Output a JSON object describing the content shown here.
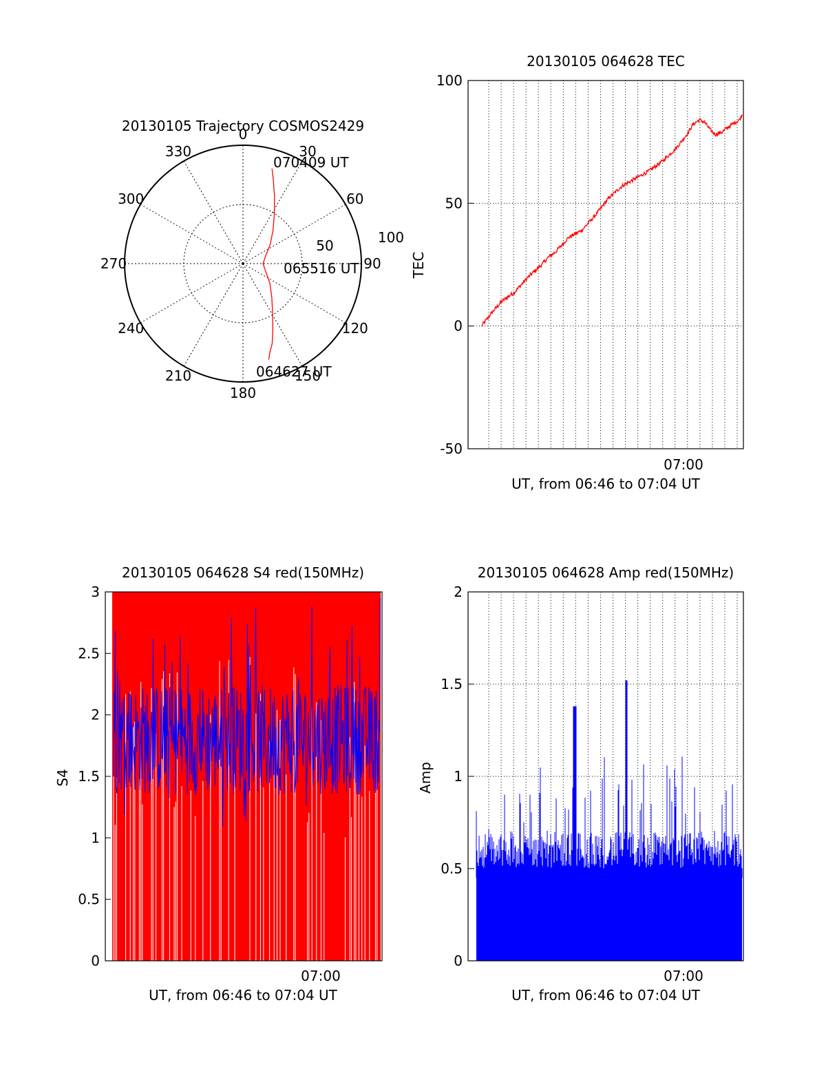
{
  "colors": {
    "red": "#ff0000",
    "blue": "#0000ff",
    "axis": "#000000",
    "grid": "#000000"
  },
  "chart_data": [
    {
      "type": "polar",
      "title": "20130105 Trajectory COSMOS2429",
      "azimuth_labels": [
        "0",
        "30",
        "60",
        "90",
        "120",
        "150",
        "180",
        "210",
        "240",
        "270",
        "300",
        "330"
      ],
      "radial_labels": [
        "50",
        "100"
      ],
      "zenith_scale": "100 at outer ring",
      "grid": true,
      "track": {
        "color": "red",
        "points": [
          [
            165,
            84
          ],
          [
            163,
            78
          ],
          [
            160,
            72
          ],
          [
            156,
            62
          ],
          [
            150,
            50
          ],
          [
            140,
            38
          ],
          [
            126,
            28
          ],
          [
            108,
            20
          ],
          [
            90,
            17
          ],
          [
            72,
            20
          ],
          [
            55,
            28
          ],
          [
            42,
            38
          ],
          [
            32,
            50
          ],
          [
            25,
            63
          ],
          [
            20,
            75
          ],
          [
            17,
            84
          ]
        ]
      },
      "annotations": [
        "070409 UT",
        "065516 UT",
        "064627 UT"
      ]
    },
    {
      "type": "line",
      "title": "20130105 064628 TEC",
      "ylabel": "TEC",
      "xlabel": "UT, from 06:46 to 07:04 UT",
      "x_tick_label": "07:00",
      "yticks": [
        "-50",
        "0",
        "50",
        "100"
      ],
      "ylim": [
        -50,
        100
      ],
      "xlim_minutes": [
        0,
        18
      ],
      "grid": true,
      "series": [
        {
          "color": "red",
          "points": [
            [
              0.5,
              0
            ],
            [
              1.2,
              5
            ],
            [
              2,
              10
            ],
            [
              3,
              14
            ],
            [
              3.5,
              17
            ],
            [
              4,
              20
            ],
            [
              5,
              25
            ],
            [
              5.5,
              28
            ],
            [
              6,
              30
            ],
            [
              6.5,
              33
            ],
            [
              7,
              36
            ],
            [
              8,
              39
            ],
            [
              9,
              45
            ],
            [
              10,
              52
            ],
            [
              11,
              57
            ],
            [
              12,
              60
            ],
            [
              13,
              63
            ],
            [
              14,
              67
            ],
            [
              15,
              72
            ],
            [
              16,
              79
            ],
            [
              16.3,
              82
            ],
            [
              16.8,
              84
            ],
            [
              17.2,
              83
            ],
            [
              17.6,
              80
            ],
            [
              18,
              78
            ],
            [
              18.5,
              79
            ],
            [
              19.2,
              82
            ],
            [
              19.8,
              84
            ],
            [
              20,
              86
            ]
          ]
        }
      ]
    },
    {
      "type": "line",
      "title": "20130105 064628 S4 red(150MHz)",
      "ylabel": "S4",
      "xlabel": "UT, from 06:46 to 07:04 UT",
      "x_tick_label": "07:00",
      "yticks": [
        "0",
        "0.5",
        "1",
        "1.5",
        "2",
        "2.5",
        "3"
      ],
      "ylim": [
        0,
        3
      ],
      "series": [
        {
          "color": "red",
          "style": "dense vertical spikes 0 to 3"
        },
        {
          "color": "blue",
          "style": "noisy band between 1.2 and 2.8, mean ~1.8"
        }
      ]
    },
    {
      "type": "bar",
      "title": "20130105 064628 Amp red(150MHz)",
      "ylabel": "Amp",
      "xlabel": "UT, from 06:46 to 07:04 UT",
      "x_tick_label": "07:00",
      "yticks": [
        "0",
        "0.5",
        "1",
        "1.5",
        "2"
      ],
      "ylim": [
        0,
        2
      ],
      "grid": true,
      "series": [
        {
          "color": "blue",
          "style": "dense spikes, baseline ~0.5, peaks 1.38 and 1.52"
        }
      ]
    }
  ]
}
